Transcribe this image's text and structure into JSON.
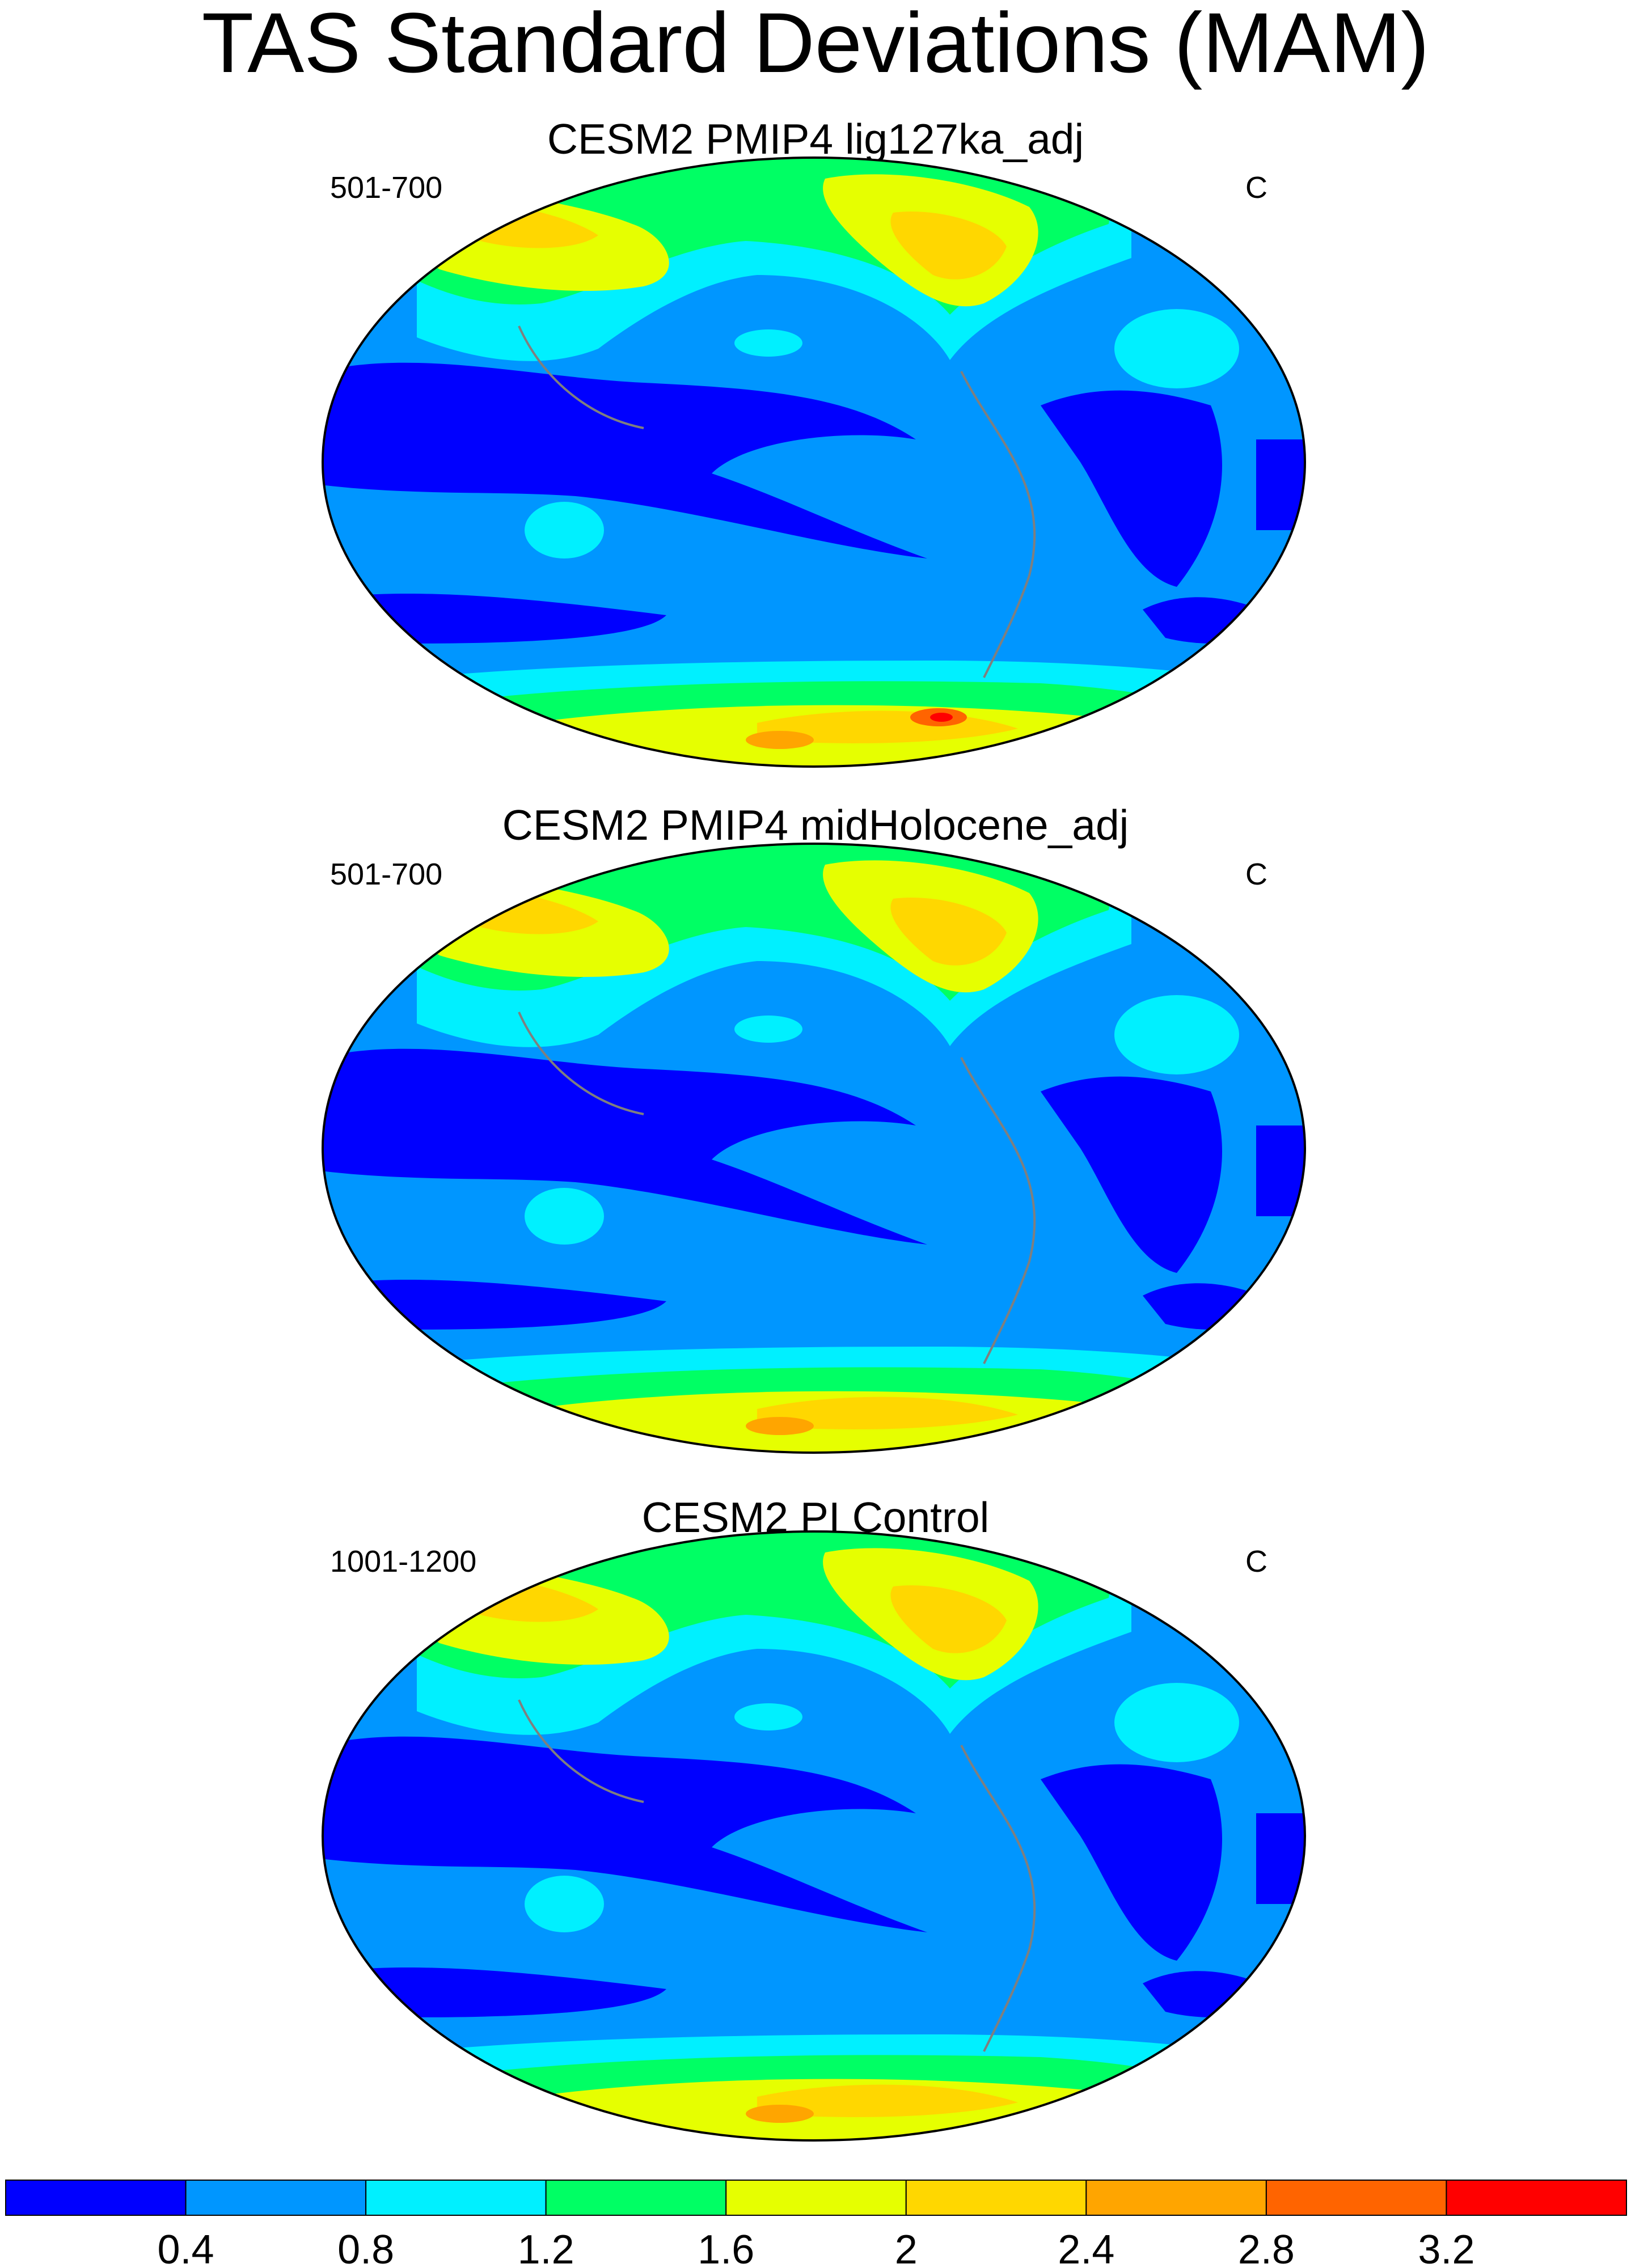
{
  "title": "TAS Standard Deviations (MAM)",
  "panels": [
    {
      "title": "CESM2 PMIP4 lig127ka_adj",
      "left_label": "501-700",
      "right_label": "C"
    },
    {
      "title": "CESM2 PMIP4 midHolocene_adj",
      "left_label": "501-700",
      "right_label": "C"
    },
    {
      "title": "CESM2 PI Control",
      "left_label": "1001-1200",
      "right_label": "C"
    }
  ],
  "colorbar": {
    "ticks": [
      "0.4",
      "0.8",
      "1.2",
      "1.6",
      "2",
      "2.4",
      "2.8",
      "3.2"
    ],
    "colors": [
      "#0000ff",
      "#0096ff",
      "#00f0ff",
      "#00ff64",
      "#e6ff00",
      "#ffd700",
      "#ffa500",
      "#ff6400",
      "#ff0000"
    ]
  },
  "chart_data": {
    "type": "heatmap",
    "projection": "Hammer/Aitoff world map centered on the Pacific",
    "levels": [
      0.4,
      0.8,
      1.2,
      1.6,
      2,
      2.4,
      2.8,
      3.2
    ],
    "units": "C"
  }
}
